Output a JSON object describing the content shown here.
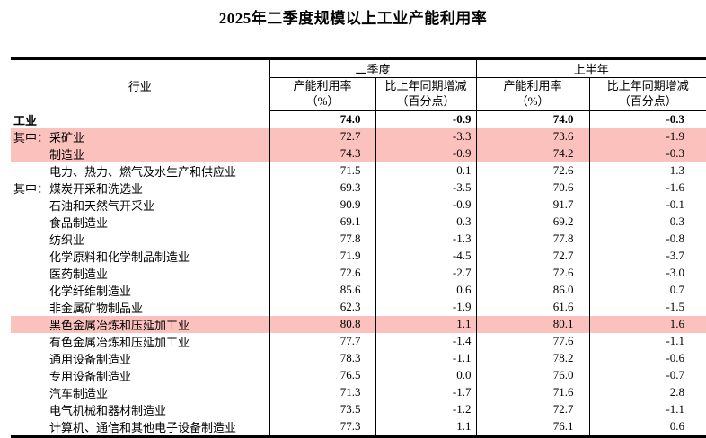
{
  "title": "2025年二季度规模以上工业产能利用率",
  "table": {
    "highlight_color": "#fbc1bd",
    "industry_header": "行业",
    "groups": [
      {
        "label": "二季度"
      },
      {
        "label": "上半年"
      }
    ],
    "sub_headers": [
      {
        "line1": "产能利用率",
        "line2": "（%）"
      },
      {
        "line1": "比上年同期增减",
        "line2": "（百分点）"
      },
      {
        "line1": "产能利用率",
        "line2": "（%）"
      },
      {
        "line1": "比上年同期增减",
        "line2": "（百分点）"
      }
    ],
    "rows": [
      {
        "prefix": "",
        "name": "工业",
        "bold": true,
        "highlight": false,
        "values": [
          "74.0",
          "-0.9",
          "74.0",
          "-0.3"
        ]
      },
      {
        "prefix": "其中：",
        "name": "采矿业",
        "bold": false,
        "highlight": true,
        "values": [
          "72.7",
          "-3.3",
          "73.6",
          "-1.9"
        ]
      },
      {
        "prefix": "",
        "name": "制造业",
        "bold": false,
        "highlight": true,
        "values": [
          "74.3",
          "-0.9",
          "74.2",
          "-0.3"
        ]
      },
      {
        "prefix": "",
        "name": "电力、热力、燃气及水生产和供应业",
        "bold": false,
        "highlight": false,
        "values": [
          "71.5",
          "0.1",
          "72.6",
          "1.3"
        ]
      },
      {
        "prefix": "其中：",
        "name": "煤炭开采和洗选业",
        "bold": false,
        "highlight": false,
        "values": [
          "69.3",
          "-3.5",
          "70.6",
          "-1.6"
        ]
      },
      {
        "prefix": "",
        "name": "石油和天然气开采业",
        "bold": false,
        "highlight": false,
        "values": [
          "90.9",
          "-0.9",
          "91.7",
          "-0.1"
        ]
      },
      {
        "prefix": "",
        "name": "食品制造业",
        "bold": false,
        "highlight": false,
        "values": [
          "69.1",
          "0.3",
          "69.2",
          "0.3"
        ]
      },
      {
        "prefix": "",
        "name": "纺织业",
        "bold": false,
        "highlight": false,
        "values": [
          "77.8",
          "-1.3",
          "77.8",
          "-0.8"
        ]
      },
      {
        "prefix": "",
        "name": "化学原料和化学制品制造业",
        "bold": false,
        "highlight": false,
        "values": [
          "71.9",
          "-4.5",
          "72.7",
          "-3.7"
        ]
      },
      {
        "prefix": "",
        "name": "医药制造业",
        "bold": false,
        "highlight": false,
        "values": [
          "72.6",
          "-2.7",
          "72.6",
          "-3.0"
        ]
      },
      {
        "prefix": "",
        "name": "化学纤维制造业",
        "bold": false,
        "highlight": false,
        "values": [
          "85.6",
          "0.6",
          "86.0",
          "0.7"
        ]
      },
      {
        "prefix": "",
        "name": "非金属矿物制品业",
        "bold": false,
        "highlight": false,
        "values": [
          "62.3",
          "-1.9",
          "61.6",
          "-1.5"
        ]
      },
      {
        "prefix": "",
        "name": "黑色金属冶炼和压延加工业",
        "bold": false,
        "highlight": true,
        "values": [
          "80.8",
          "1.1",
          "80.1",
          "1.6"
        ]
      },
      {
        "prefix": "",
        "name": "有色金属冶炼和压延加工业",
        "bold": false,
        "highlight": false,
        "values": [
          "77.7",
          "-1.4",
          "77.6",
          "-1.1"
        ]
      },
      {
        "prefix": "",
        "name": "通用设备制造业",
        "bold": false,
        "highlight": false,
        "values": [
          "78.3",
          "-1.1",
          "78.2",
          "-0.6"
        ]
      },
      {
        "prefix": "",
        "name": "专用设备制造业",
        "bold": false,
        "highlight": false,
        "values": [
          "76.5",
          "0.0",
          "76.0",
          "-0.7"
        ]
      },
      {
        "prefix": "",
        "name": "汽车制造业",
        "bold": false,
        "highlight": false,
        "values": [
          "71.3",
          "-1.7",
          "71.6",
          "2.8"
        ]
      },
      {
        "prefix": "",
        "name": "电气机械和器材制造业",
        "bold": false,
        "highlight": false,
        "values": [
          "73.5",
          "-1.2",
          "72.7",
          "-1.1"
        ]
      },
      {
        "prefix": "",
        "name": "计算机、通信和其他电子设备制造业",
        "bold": false,
        "highlight": false,
        "values": [
          "77.3",
          "1.1",
          "76.1",
          "0.6"
        ]
      }
    ]
  }
}
